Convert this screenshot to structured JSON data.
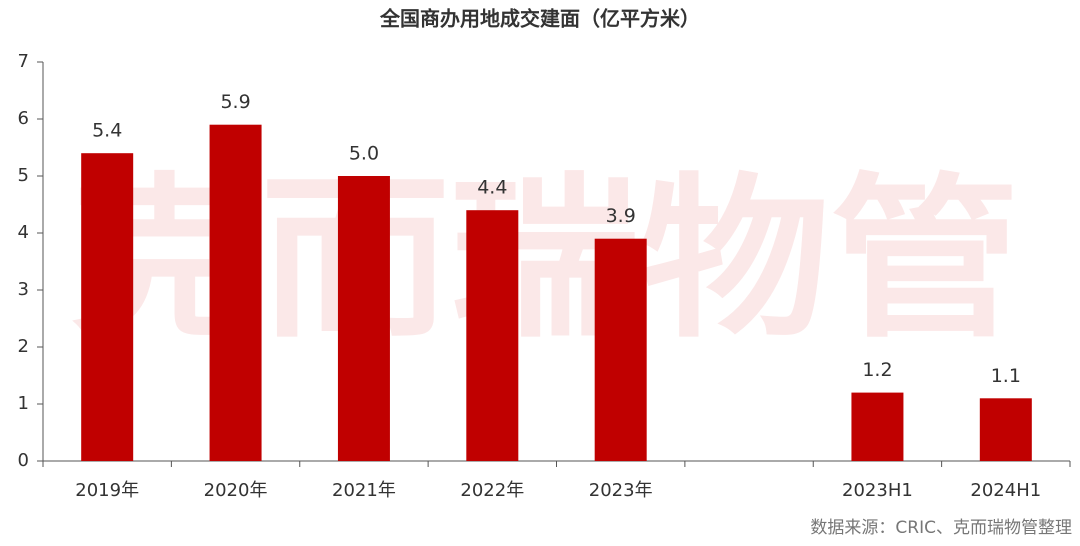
{
  "chart_data": {
    "type": "bar",
    "title": "全国商办用地成交建面（亿平方米）",
    "watermark": "克而瑞物管",
    "source": "数据来源：CRIC、克而瑞物管整理",
    "categories": [
      "2019年",
      "2020年",
      "2021年",
      "2022年",
      "2023年",
      null,
      "2023H1",
      "2024H1"
    ],
    "values": [
      5.4,
      5.9,
      5.0,
      4.4,
      3.9,
      null,
      1.2,
      1.1
    ],
    "value_labels": [
      "5.4",
      "5.9",
      "5.0",
      "4.4",
      "3.9",
      null,
      "1.2",
      "1.1"
    ],
    "color": "#c00000",
    "ylim": [
      0,
      7
    ],
    "yticks": [
      0,
      1,
      2,
      3,
      4,
      5,
      6,
      7
    ],
    "grid": false
  }
}
